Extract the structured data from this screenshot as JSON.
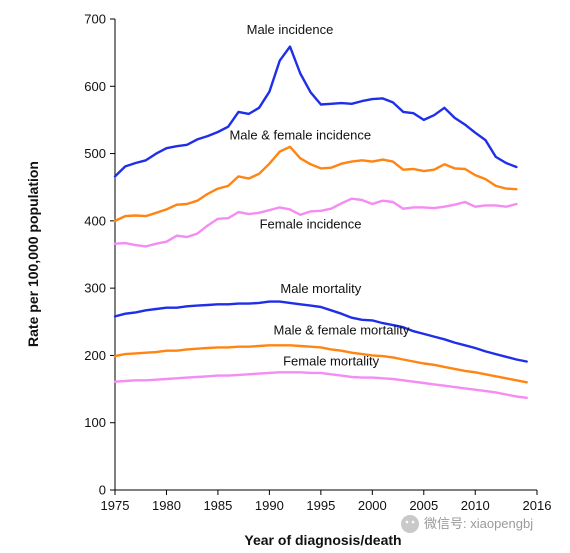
{
  "chart_data": {
    "type": "line",
    "title": "",
    "xlabel": "Year of diagnosis/death",
    "ylabel": "Rate per 100,000 population",
    "xlim": [
      1975,
      2016
    ],
    "ylim": [
      0,
      700
    ],
    "xticks": [
      1975,
      1980,
      1985,
      1990,
      1995,
      2000,
      2005,
      2010,
      2016
    ],
    "yticks": [
      0,
      100,
      200,
      300,
      400,
      500,
      600,
      700
    ],
    "grid": false,
    "series": [
      {
        "name": "Male incidence",
        "color": "#1f2ee8",
        "x": [
          1975,
          1976,
          1977,
          1978,
          1979,
          1980,
          1981,
          1982,
          1983,
          1984,
          1985,
          1986,
          1987,
          1988,
          1989,
          1990,
          1991,
          1992,
          1993,
          1994,
          1995,
          1996,
          1997,
          1998,
          1999,
          2000,
          2001,
          2002,
          2003,
          2004,
          2005,
          2006,
          2007,
          2008,
          2009,
          2010,
          2011,
          2012,
          2013,
          2014
        ],
        "values": [
          466,
          481,
          486,
          490,
          500,
          508,
          511,
          513,
          521,
          526,
          532,
          540,
          562,
          559,
          568,
          592,
          638,
          659,
          619,
          591,
          573,
          574,
          575,
          574,
          578,
          581,
          582,
          576,
          562,
          560,
          550,
          557,
          568,
          553,
          543,
          531,
          520,
          495,
          486,
          480
        ]
      },
      {
        "name": "Male & female incidence",
        "color": "#ff8412",
        "x": [
          1975,
          1976,
          1977,
          1978,
          1979,
          1980,
          1981,
          1982,
          1983,
          1984,
          1985,
          1986,
          1987,
          1988,
          1989,
          1990,
          1991,
          1992,
          1993,
          1994,
          1995,
          1996,
          1997,
          1998,
          1999,
          2000,
          2001,
          2002,
          2003,
          2004,
          2005,
          2006,
          2007,
          2008,
          2009,
          2010,
          2011,
          2012,
          2013,
          2014
        ],
        "values": [
          400,
          407,
          408,
          407,
          412,
          417,
          424,
          425,
          430,
          440,
          448,
          452,
          466,
          463,
          470,
          485,
          503,
          510,
          493,
          484,
          478,
          479,
          485,
          488,
          490,
          488,
          491,
          488,
          476,
          477,
          474,
          476,
          484,
          478,
          477,
          468,
          462,
          452,
          448,
          447
        ]
      },
      {
        "name": "Female incidence",
        "color": "#f58cf2",
        "x": [
          1975,
          1976,
          1977,
          1978,
          1979,
          1980,
          1981,
          1982,
          1983,
          1984,
          1985,
          1986,
          1987,
          1988,
          1989,
          1990,
          1991,
          1992,
          1993,
          1994,
          1995,
          1996,
          1997,
          1998,
          1999,
          2000,
          2001,
          2002,
          2003,
          2004,
          2005,
          2006,
          2007,
          2008,
          2009,
          2010,
          2011,
          2012,
          2013,
          2014
        ],
        "values": [
          366,
          367,
          364,
          362,
          366,
          369,
          378,
          376,
          381,
          393,
          403,
          404,
          413,
          410,
          412,
          416,
          420,
          417,
          409,
          414,
          415,
          418,
          426,
          433,
          431,
          425,
          430,
          428,
          418,
          420,
          420,
          419,
          421,
          424,
          428,
          421,
          423,
          423,
          421,
          425
        ]
      },
      {
        "name": "Male mortality",
        "color": "#1f2ee8",
        "x": [
          1975,
          1976,
          1977,
          1978,
          1979,
          1980,
          1981,
          1982,
          1983,
          1984,
          1985,
          1986,
          1987,
          1988,
          1989,
          1990,
          1991,
          1992,
          1993,
          1994,
          1995,
          1996,
          1997,
          1998,
          1999,
          2000,
          2001,
          2002,
          2003,
          2004,
          2005,
          2006,
          2007,
          2008,
          2009,
          2010,
          2011,
          2012,
          2013,
          2014,
          2015
        ],
        "values": [
          258,
          262,
          264,
          267,
          269,
          271,
          271,
          273,
          274,
          275,
          276,
          276,
          277,
          277,
          278,
          280,
          280,
          278,
          276,
          274,
          272,
          267,
          262,
          256,
          253,
          252,
          248,
          245,
          242,
          236,
          232,
          228,
          224,
          219,
          215,
          211,
          206,
          202,
          198,
          194,
          191
        ]
      },
      {
        "name": "Male & female mortality",
        "color": "#ff8412",
        "x": [
          1975,
          1976,
          1977,
          1978,
          1979,
          1980,
          1981,
          1982,
          1983,
          1984,
          1985,
          1986,
          1987,
          1988,
          1989,
          1990,
          1991,
          1992,
          1993,
          1994,
          1995,
          1996,
          1997,
          1998,
          1999,
          2000,
          2001,
          2002,
          2003,
          2004,
          2005,
          2006,
          2007,
          2008,
          2009,
          2010,
          2011,
          2012,
          2013,
          2014,
          2015
        ],
        "values": [
          199,
          202,
          203,
          204,
          205,
          207,
          207,
          209,
          210,
          211,
          212,
          212,
          213,
          213,
          214,
          215,
          215,
          215,
          214,
          213,
          212,
          209,
          207,
          204,
          202,
          200,
          199,
          197,
          194,
          191,
          188,
          186,
          183,
          180,
          177,
          175,
          172,
          169,
          166,
          163,
          160
        ]
      },
      {
        "name": "Female mortality",
        "color": "#f58cf2",
        "x": [
          1975,
          1976,
          1977,
          1978,
          1979,
          1980,
          1981,
          1982,
          1983,
          1984,
          1985,
          1986,
          1987,
          1988,
          1989,
          1990,
          1991,
          1992,
          1993,
          1994,
          1995,
          1996,
          1997,
          1998,
          1999,
          2000,
          2001,
          2002,
          2003,
          2004,
          2005,
          2006,
          2007,
          2008,
          2009,
          2010,
          2011,
          2012,
          2013,
          2014,
          2015
        ],
        "values": [
          161,
          162,
          163,
          163,
          164,
          165,
          166,
          167,
          168,
          169,
          170,
          170,
          171,
          172,
          173,
          174,
          175,
          175,
          175,
          174,
          174,
          172,
          170,
          168,
          167,
          167,
          166,
          165,
          163,
          161,
          159,
          157,
          155,
          153,
          151,
          149,
          147,
          145,
          142,
          139,
          137
        ]
      }
    ],
    "annotations": [
      {
        "text": "Male incidence",
        "x": 1992,
        "y": 678
      },
      {
        "text": "Male & female incidence",
        "x": 1993,
        "y": 521
      },
      {
        "text": "Female incidence",
        "x": 1994,
        "y": 389
      },
      {
        "text": "Male mortality",
        "x": 1995,
        "y": 293
      },
      {
        "text": "Male & female mortality",
        "x": 1997,
        "y": 231
      },
      {
        "text": "Female mortality",
        "x": 1996,
        "y": 185
      }
    ]
  },
  "watermark": {
    "text": "微信号: xiaopengbj"
  }
}
